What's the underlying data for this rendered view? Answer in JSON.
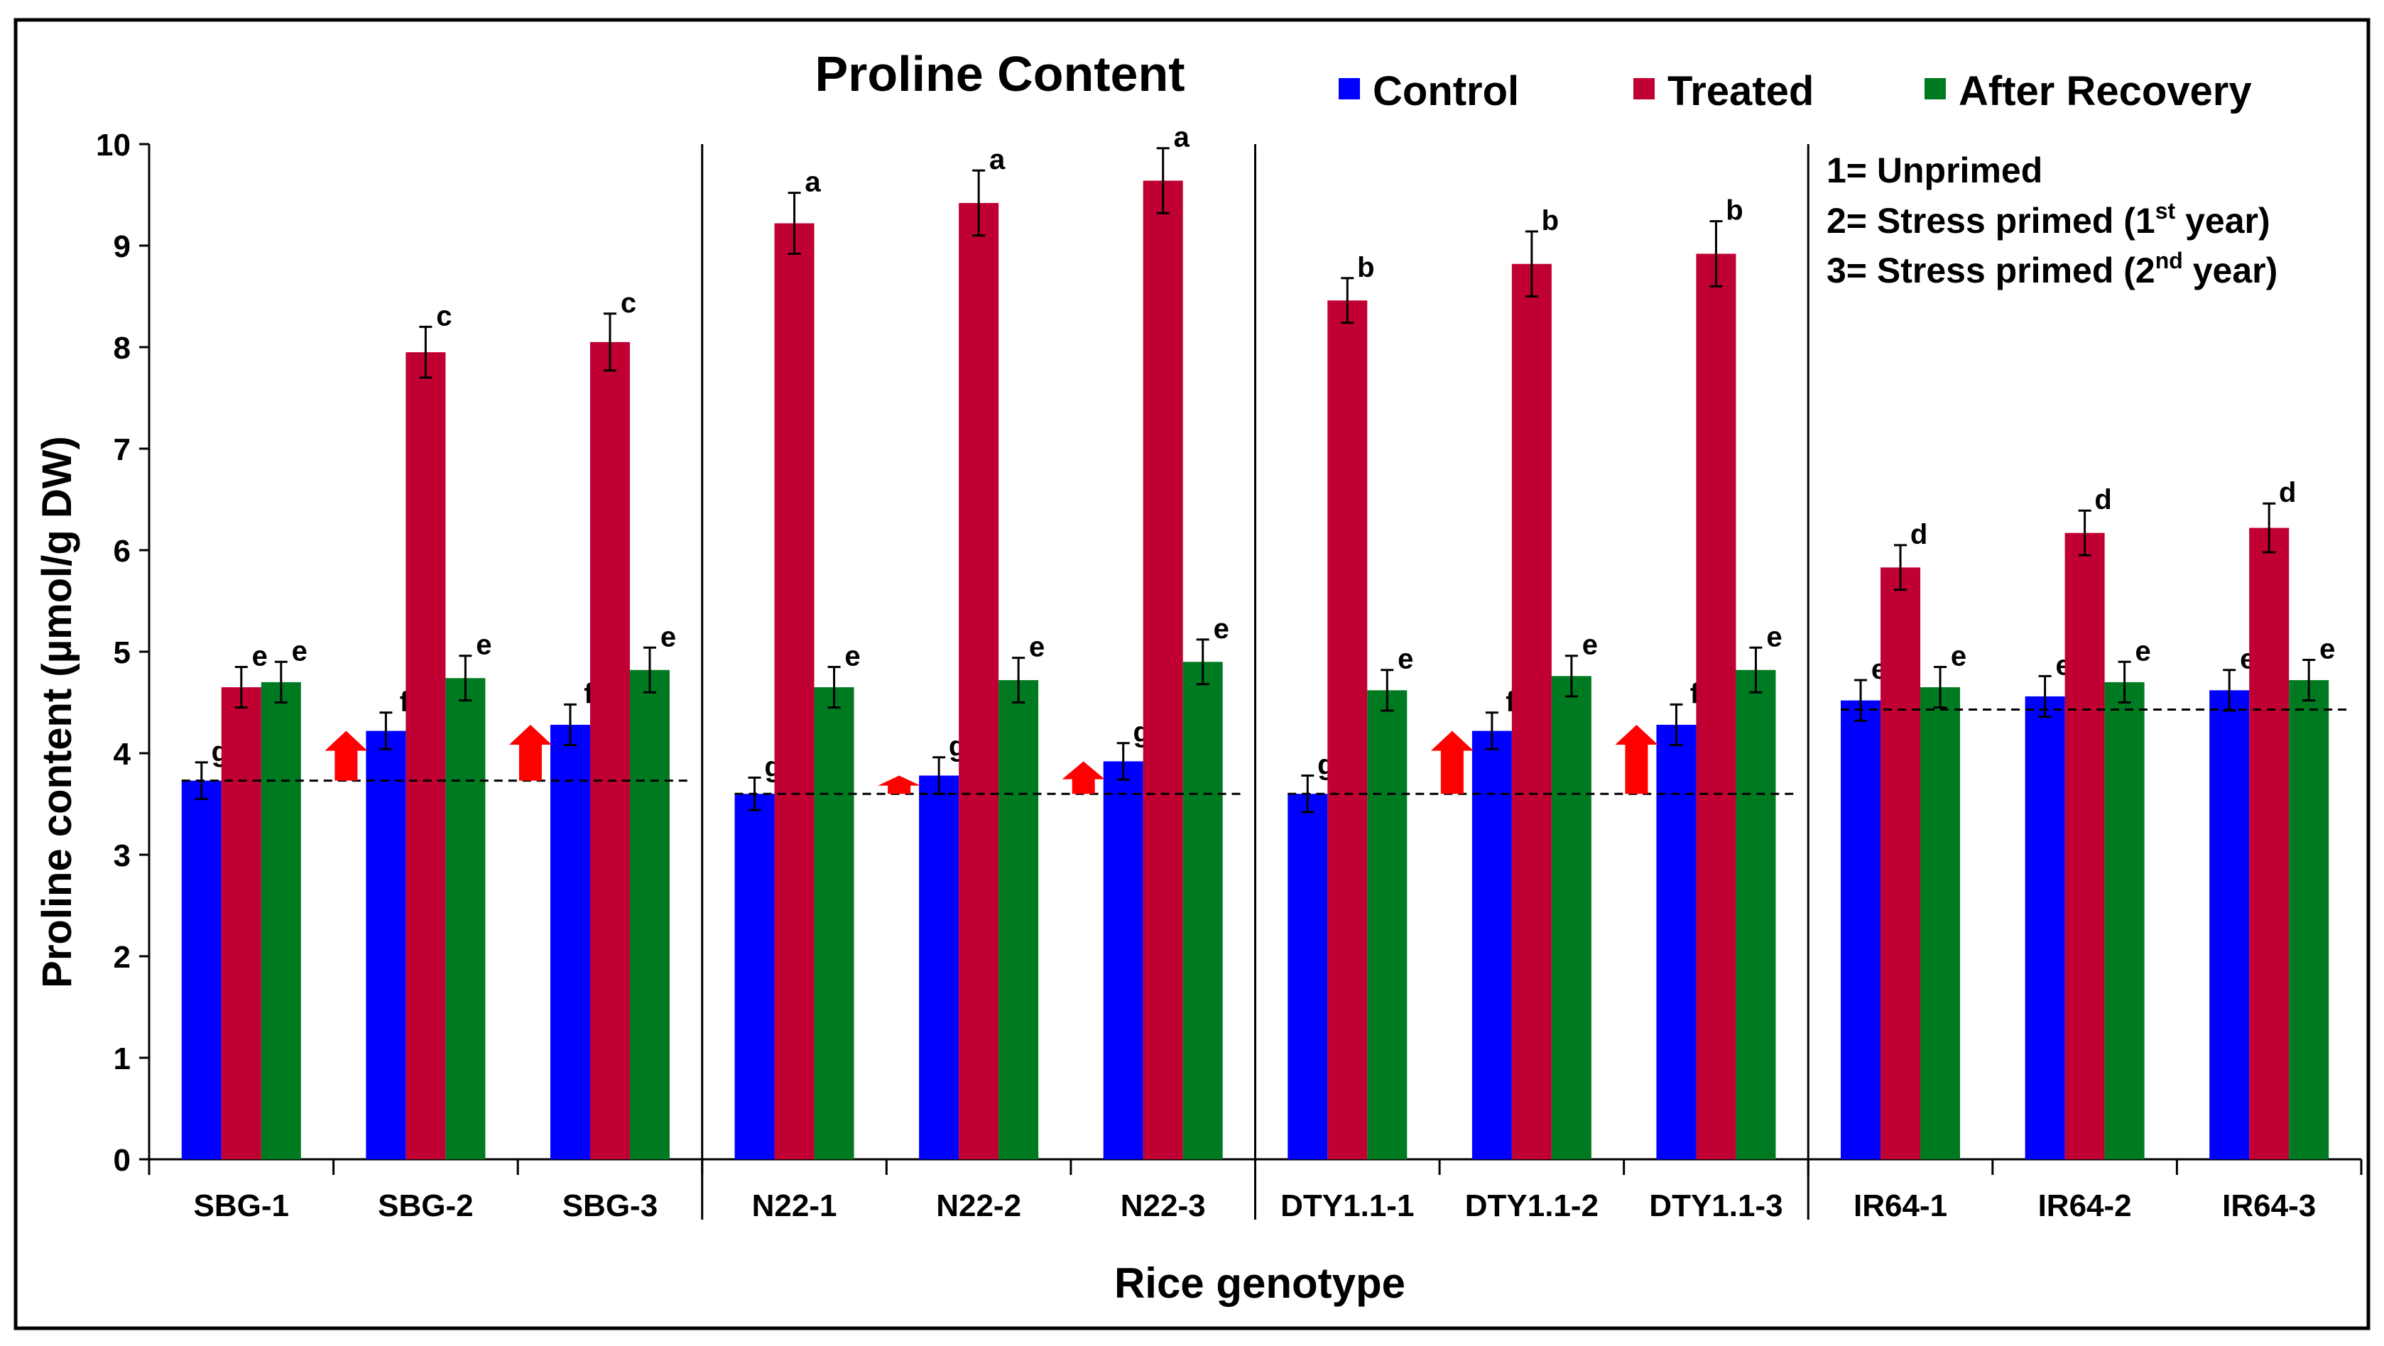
{
  "chart_data": {
    "type": "bar",
    "title": "Proline Content",
    "xlabel": "Rice genotype",
    "ylabel": "Proline content (µmol/g DW)",
    "ylim": [
      0,
      10
    ],
    "yticks": [
      "0",
      "1",
      "2",
      "3",
      "4",
      "5",
      "6",
      "7",
      "8",
      "9",
      "10"
    ],
    "grid": false,
    "legend_position": "top",
    "categories": [
      "SBG-1",
      "SBG-2",
      "SBG-3",
      "N22-1",
      "N22-2",
      "N22-3",
      "DTY1.1-1",
      "DTY1.1-2",
      "DTY1.1-3",
      "IR64-1",
      "IR64-2",
      "IR64-3"
    ],
    "groups": [
      {
        "name": "SBG",
        "categories": [
          0,
          1,
          2
        ],
        "baseline": 3.73
      },
      {
        "name": "N22",
        "categories": [
          3,
          4,
          5
        ],
        "baseline": 3.6
      },
      {
        "name": "DTY1.1",
        "categories": [
          6,
          7,
          8
        ],
        "baseline": 3.6
      },
      {
        "name": "IR64",
        "categories": [
          9,
          10,
          11
        ],
        "baseline": 4.43
      }
    ],
    "series": [
      {
        "name": "Control",
        "color": "#0000ff",
        "values": [
          3.73,
          4.22,
          4.28,
          3.6,
          3.78,
          3.92,
          3.6,
          4.22,
          4.28,
          4.52,
          4.56,
          4.62
        ],
        "errors": [
          0.18,
          0.18,
          0.2,
          0.16,
          0.18,
          0.18,
          0.18,
          0.18,
          0.2,
          0.2,
          0.2,
          0.2
        ],
        "letters": [
          "g",
          "f",
          "f",
          "g",
          "g",
          "g",
          "g",
          "f",
          "f",
          "e",
          "e",
          "e"
        ]
      },
      {
        "name": "Treated",
        "color": "#c00033",
        "values": [
          4.65,
          7.95,
          8.05,
          9.22,
          9.42,
          9.64,
          8.46,
          8.82,
          8.92,
          5.83,
          6.17,
          6.22
        ],
        "errors": [
          0.2,
          0.25,
          0.28,
          0.3,
          0.32,
          0.32,
          0.22,
          0.32,
          0.32,
          0.22,
          0.22,
          0.24
        ],
        "letters": [
          "e",
          "c",
          "c",
          "a",
          "a",
          "a",
          "b",
          "b",
          "b",
          "d",
          "d",
          "d"
        ]
      },
      {
        "name": "After Recovery",
        "color": "#007a20",
        "values": [
          4.7,
          4.74,
          4.82,
          4.65,
          4.72,
          4.9,
          4.62,
          4.76,
          4.82,
          4.65,
          4.7,
          4.72
        ],
        "errors": [
          0.2,
          0.22,
          0.22,
          0.2,
          0.22,
          0.22,
          0.2,
          0.2,
          0.22,
          0.2,
          0.2,
          0.2
        ],
        "letters": [
          "e",
          "e",
          "e",
          "e",
          "e",
          "e",
          "e",
          "e",
          "e",
          "e",
          "e",
          "e"
        ]
      }
    ],
    "arrows": [
      {
        "category": 1,
        "from": 3.73,
        "to": 4.22
      },
      {
        "category": 2,
        "from": 3.73,
        "to": 4.28
      },
      {
        "category": 4,
        "from": 3.6,
        "to": 3.78
      },
      {
        "category": 5,
        "from": 3.6,
        "to": 3.92
      },
      {
        "category": 7,
        "from": 3.6,
        "to": 4.22
      },
      {
        "category": 8,
        "from": 3.6,
        "to": 4.28
      }
    ],
    "annotation": [
      {
        "num": "1= Unprimed",
        "sup": "",
        "rest": ""
      },
      {
        "num": "2= Stress primed (1",
        "sup": "st",
        "rest": " year)"
      },
      {
        "num": "3= Stress primed (2",
        "sup": "nd",
        "rest": " year)"
      }
    ],
    "arrow_color": "#ff0000"
  }
}
